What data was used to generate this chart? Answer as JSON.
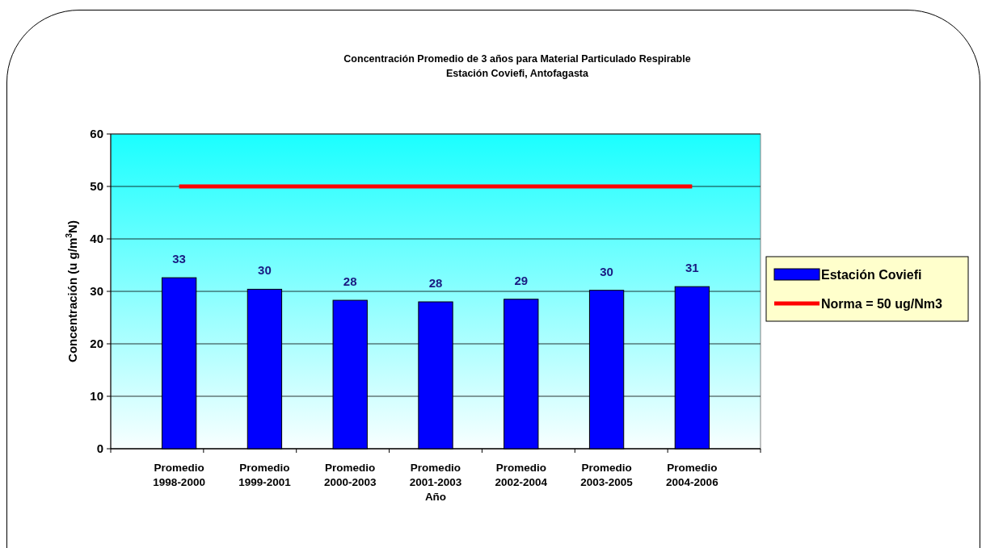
{
  "chart_data": {
    "type": "bar",
    "title": "Concentración Promedio de 3 años para Material Particulado Respirable",
    "subtitle": "Estación Coviefi, Antofagasta",
    "xlabel": "Año",
    "ylabel": "Concentración (u g/m$^{3}$N)",
    "categories": [
      "Promedio 1998-2000",
      "Promedio 1999-2001",
      "Promedio 2000-2003",
      "Promedio 2001-2003",
      "Promedio 2002-2004",
      "Promedio 2003-2005",
      "Promedio 2004-2006"
    ],
    "series": [
      {
        "name": "Estación Coviefi",
        "color": "#0000ff",
        "values": [
          32.6,
          30.4,
          28.3,
          28.0,
          28.5,
          30.2,
          30.9
        ],
        "value_labels": [
          "33",
          "30",
          "28",
          "28",
          "29",
          "30",
          "31"
        ]
      },
      {
        "name": "Norma = 50 ug/Nm3",
        "type": "line",
        "color": "#ff0000",
        "values": [
          50,
          50,
          50,
          50,
          50,
          50,
          50
        ]
      }
    ],
    "ylim": [
      0,
      60
    ],
    "yticks": [
      0,
      10,
      20,
      30,
      40,
      50,
      60
    ],
    "grid": "y",
    "legend": "right"
  }
}
